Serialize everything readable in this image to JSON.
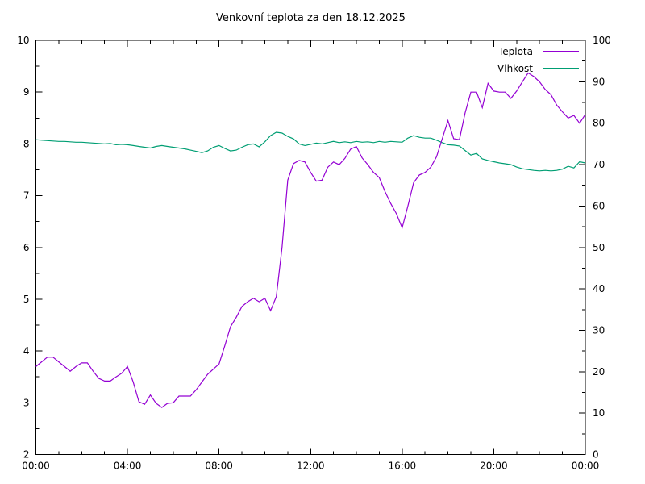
{
  "chart_data": {
    "type": "line",
    "title": "Venkovní teplota za den 18.12.2025",
    "x_range": [
      0,
      24
    ],
    "x_minor_step_hours": 1,
    "x_ticks": [
      {
        "hour": 0,
        "label": "00:00"
      },
      {
        "hour": 4,
        "label": "04:00"
      },
      {
        "hour": 8,
        "label": "08:00"
      },
      {
        "hour": 12,
        "label": "12:00"
      },
      {
        "hour": 16,
        "label": "16:00"
      },
      {
        "hour": 20,
        "label": "20:00"
      },
      {
        "hour": 24,
        "label": "00:00"
      }
    ],
    "y_left": {
      "range": [
        2,
        10
      ],
      "ticks": [
        2,
        3,
        4,
        5,
        6,
        7,
        8,
        9,
        10
      ],
      "minor_step": 0.5
    },
    "y_right": {
      "range": [
        0,
        100
      ],
      "ticks": [
        0,
        10,
        20,
        30,
        40,
        50,
        60,
        70,
        80,
        90,
        100
      ],
      "minor_step": 5
    },
    "x_start_hour": 0,
    "x_step_hours": 0.25,
    "grid": false,
    "legend_position": "top-right-inside",
    "series": [
      {
        "name": "Teplota",
        "axis": "left",
        "color": "#9400d3",
        "values": [
          3.7,
          3.79,
          3.88,
          3.88,
          3.79,
          3.7,
          3.61,
          3.7,
          3.77,
          3.77,
          3.61,
          3.47,
          3.42,
          3.42,
          3.5,
          3.57,
          3.7,
          3.4,
          3.02,
          2.97,
          3.15,
          2.99,
          2.91,
          2.99,
          3.0,
          3.13,
          3.13,
          3.13,
          3.25,
          3.4,
          3.55,
          3.65,
          3.75,
          4.1,
          4.47,
          4.65,
          4.86,
          4.95,
          5.02,
          4.95,
          5.02,
          4.78,
          5.05,
          6.0,
          7.3,
          7.62,
          7.68,
          7.65,
          7.45,
          7.28,
          7.3,
          7.55,
          7.65,
          7.6,
          7.72,
          7.9,
          7.95,
          7.73,
          7.6,
          7.45,
          7.35,
          7.08,
          6.85,
          6.65,
          6.38,
          6.8,
          7.25,
          7.4,
          7.45,
          7.55,
          7.75,
          8.1,
          8.45,
          8.1,
          8.08,
          8.6,
          9.0,
          9.0,
          8.7,
          9.17,
          9.02,
          9.0,
          9.0,
          8.88,
          9.02,
          9.2,
          9.37,
          9.3,
          9.2,
          9.05,
          8.95,
          8.75,
          8.62,
          8.5,
          8.55,
          8.4,
          8.57
        ]
      },
      {
        "name": "Vlhkost",
        "axis": "right",
        "color": "#009e73",
        "values": [
          76.0,
          75.9,
          75.8,
          75.7,
          75.6,
          75.6,
          75.5,
          75.4,
          75.4,
          75.3,
          75.2,
          75.1,
          75.0,
          75.1,
          74.8,
          74.9,
          74.8,
          74.6,
          74.4,
          74.2,
          74.0,
          74.4,
          74.6,
          74.4,
          74.2,
          74.0,
          73.8,
          73.5,
          73.2,
          72.9,
          73.3,
          74.2,
          74.6,
          73.9,
          73.3,
          73.5,
          74.2,
          74.8,
          75.0,
          74.3,
          75.5,
          77.0,
          77.8,
          77.6,
          76.8,
          76.2,
          75.0,
          74.6,
          74.9,
          75.2,
          75.0,
          75.3,
          75.6,
          75.3,
          75.5,
          75.3,
          75.6,
          75.4,
          75.5,
          75.3,
          75.6,
          75.4,
          75.6,
          75.5,
          75.4,
          76.4,
          77.0,
          76.6,
          76.4,
          76.4,
          75.9,
          75.3,
          74.8,
          74.7,
          74.5,
          73.4,
          72.3,
          72.7,
          71.4,
          71.0,
          70.7,
          70.4,
          70.2,
          70.0,
          69.4,
          69.0,
          68.8,
          68.6,
          68.5,
          68.6,
          68.5,
          68.6,
          68.9,
          69.6,
          69.2,
          70.7,
          70.4
        ]
      }
    ]
  },
  "colors": {
    "background": "#ffffff",
    "axis": "#000000",
    "text": "#000000",
    "teplota": "#9400d3",
    "vlhkost": "#009e73"
  }
}
